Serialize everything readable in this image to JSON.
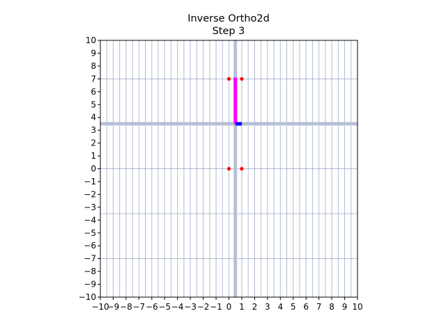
{
  "chart_data": {
    "type": "scatter",
    "title": "Inverse Ortho2d",
    "subtitle": "Step 3",
    "xlabel": "",
    "ylabel": "",
    "xlim": [
      -10,
      10
    ],
    "ylim": [
      -10,
      10
    ],
    "xticks": [
      "−10",
      "−9",
      "−8",
      "−7",
      "−6",
      "−5",
      "−4",
      "−3",
      "−2",
      "−1",
      "0",
      "1",
      "2",
      "3",
      "4",
      "5",
      "6",
      "7",
      "8",
      "9",
      "10"
    ],
    "yticks": [
      "10",
      "9",
      "8",
      "7",
      "6",
      "5",
      "4",
      "3",
      "2",
      "1",
      "0",
      "−1",
      "−2",
      "−3",
      "−4",
      "−5",
      "−6",
      "−7",
      "−8",
      "−9",
      "−10"
    ],
    "grid": true,
    "vertical_grid_step": 0.5,
    "horizontal_grid_lines": [
      -7,
      -3.5,
      0,
      3.5,
      7
    ],
    "highlight_axes": {
      "x": 0.5,
      "y": 3.5,
      "color": "#b8c0d8"
    },
    "grid_color": "#8090b8",
    "points": [
      {
        "x": 0,
        "y": 7
      },
      {
        "x": 1,
        "y": 7
      },
      {
        "x": 0,
        "y": 0
      },
      {
        "x": 1,
        "y": 0
      }
    ],
    "point_color": "#ff0000",
    "segments": [
      {
        "x1": 0.5,
        "y1": 3.5,
        "x2": 0.5,
        "y2": 7.1,
        "color": "#ff00ff"
      },
      {
        "x1": 0.5,
        "y1": 3.5,
        "x2": 1.0,
        "y2": 3.5,
        "color": "#0000ff"
      }
    ]
  }
}
